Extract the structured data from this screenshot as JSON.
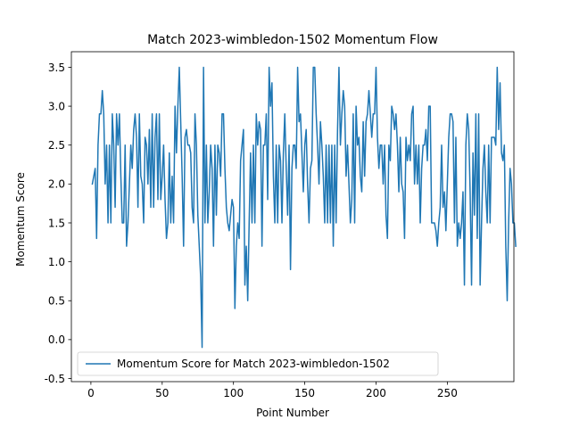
{
  "chart_data": {
    "type": "line",
    "title": "Match 2023-wimbledon-1502 Momentum Flow",
    "xlabel": "Point Number",
    "ylabel": "Momentum Score",
    "xlim": [
      -13.7,
      296.7
    ],
    "ylim": [
      -0.54,
      3.7
    ],
    "xticks": [
      0,
      50,
      100,
      150,
      200,
      250
    ],
    "yticks": [
      -0.5,
      0.0,
      0.5,
      1.0,
      1.5,
      2.0,
      2.5,
      3.0,
      3.5
    ],
    "legend": "bottom-left",
    "grid": false,
    "series": [
      {
        "name": "Momentum Score for Match 2023-wimbledon-1502",
        "color": "#1f77b4",
        "x_start": 1,
        "values": [
          2.0,
          2.1,
          2.2,
          1.3,
          2.5,
          2.9,
          2.9,
          3.2,
          2.9,
          2.0,
          2.5,
          1.5,
          2.5,
          1.5,
          2.9,
          2.5,
          1.7,
          2.9,
          2.5,
          2.9,
          2.1,
          1.5,
          1.5,
          2.5,
          1.2,
          1.5,
          2.0,
          2.5,
          2.2,
          2.7,
          2.9,
          2.6,
          1.7,
          2.9,
          2.1,
          2.0,
          1.5,
          2.6,
          2.5,
          2.0,
          2.7,
          1.7,
          2.9,
          1.7,
          2.6,
          2.9,
          1.8,
          2.9,
          1.8,
          2.1,
          2.5,
          1.8,
          1.3,
          1.5,
          2.4,
          1.5,
          2.1,
          1.5,
          3.0,
          2.4,
          3.0,
          3.5,
          2.8,
          2.1,
          1.2,
          2.6,
          2.7,
          2.5,
          2.5,
          2.4,
          1.7,
          1.5,
          2.9,
          2.5,
          1.6,
          1.2,
          0.8,
          -0.1,
          3.5,
          1.5,
          2.5,
          1.5,
          1.9,
          2.5,
          2.2,
          1.2,
          2.5,
          1.6,
          2.5,
          2.4,
          2.1,
          2.9,
          2.9,
          2.2,
          1.7,
          1.5,
          1.4,
          1.6,
          1.8,
          1.7,
          0.4,
          1.2,
          1.5,
          1.3,
          2.3,
          2.5,
          2.7,
          0.7,
          1.2,
          0.5,
          1.5,
          2.4,
          1.5,
          2.5,
          1.5,
          2.9,
          2.5,
          2.8,
          2.7,
          1.2,
          2.5,
          2.5,
          2.9,
          1.8,
          3.5,
          3.0,
          3.3,
          2.1,
          1.5,
          2.5,
          1.5,
          2.5,
          2.3,
          1.5,
          2.4,
          2.9,
          2.2,
          1.6,
          2.5,
          0.9,
          2.2,
          2.5,
          2.5,
          2.2,
          3.5,
          2.8,
          2.9,
          2.4,
          1.9,
          2.5,
          2.7,
          2.0,
          1.5,
          2.2,
          2.3,
          3.5,
          3.5,
          2.9,
          2.5,
          2.0,
          2.8,
          2.5,
          2.1,
          1.5,
          2.5,
          1.5,
          2.5,
          1.5,
          2.5,
          1.2,
          2.5,
          1.5,
          2.7,
          3.5,
          2.5,
          2.9,
          3.2,
          3.0,
          2.1,
          2.5,
          2.0,
          1.5,
          1.8,
          2.9,
          1.5,
          3.0,
          2.5,
          2.6,
          2.1,
          1.9,
          2.8,
          2.1,
          2.8,
          2.9,
          3.2,
          2.9,
          2.6,
          2.9,
          2.9,
          3.5,
          2.6,
          2.2,
          2.5,
          2.5,
          2.0,
          2.5,
          1.6,
          1.3,
          2.5,
          2.3,
          3.0,
          2.9,
          2.7,
          2.9,
          2.5,
          1.9,
          2.6,
          2.0,
          1.9,
          1.3,
          2.6,
          2.3,
          2.5,
          2.3,
          2.9,
          3.0,
          2.0,
          2.5,
          2.0,
          2.5,
          1.5,
          2.2,
          2.5,
          2.5,
          2.7,
          2.3,
          3.0,
          3.0,
          1.5,
          1.5,
          1.5,
          1.4,
          1.2,
          1.5,
          1.7,
          2.5,
          1.7,
          1.9,
          1.4,
          2.0,
          2.6,
          2.9,
          2.9,
          2.8,
          1.5,
          2.6,
          1.2,
          1.5,
          1.3,
          1.5,
          1.9,
          0.7,
          2.5,
          2.9,
          2.7,
          1.9,
          0.7,
          2.4,
          1.6,
          2.9,
          1.3,
          2.9,
          0.7,
          1.5,
          2.2,
          2.5,
          1.9,
          1.5,
          2.5,
          1.5,
          2.6,
          2.6,
          2.6,
          2.5,
          3.5,
          2.7,
          3.3,
          2.4,
          2.3,
          2.5,
          1.2,
          0.5,
          1.5,
          2.2,
          2.0,
          1.5,
          1.5,
          1.2
        ]
      }
    ]
  }
}
